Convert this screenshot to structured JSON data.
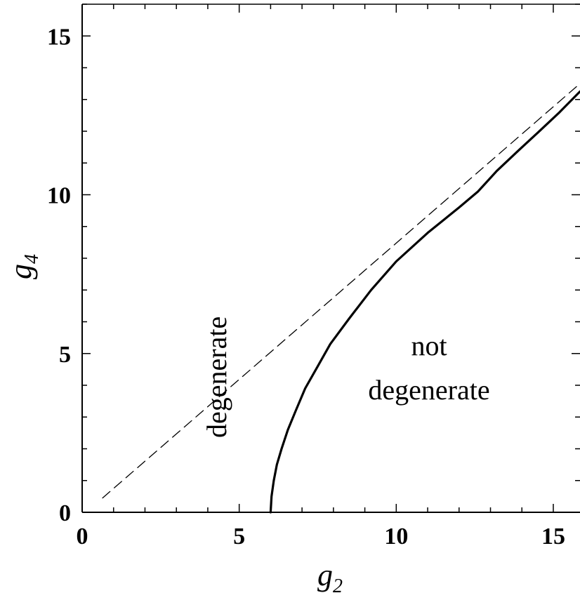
{
  "chart_data": {
    "type": "line",
    "xlabel": "g",
    "xlabel_sub": "2",
    "ylabel": "g",
    "ylabel_sub": "4",
    "xlim": [
      0,
      15.85
    ],
    "ylim": [
      0,
      16
    ],
    "x_ticks": [
      0,
      5,
      10,
      15
    ],
    "y_ticks": [
      0,
      5,
      10,
      15
    ],
    "grid": false,
    "series": [
      {
        "style": "solid",
        "color": "#000000",
        "x": [
          6.0,
          6.03,
          6.1,
          6.2,
          6.35,
          6.55,
          6.8,
          7.1,
          7.5,
          7.9,
          8.5,
          9.2,
          10.0,
          11.0,
          12.0,
          12.6,
          13.2,
          13.9,
          14.5,
          15.2,
          15.85
        ],
        "y": [
          0.0,
          0.5,
          1.0,
          1.5,
          2.0,
          2.6,
          3.2,
          3.9,
          4.6,
          5.3,
          6.1,
          7.0,
          7.9,
          8.8,
          9.6,
          10.1,
          10.75,
          11.4,
          11.95,
          12.6,
          13.25
        ]
      },
      {
        "style": "dashed",
        "color": "#000000",
        "x": [
          0.65,
          15.85
        ],
        "y": [
          0.45,
          13.5
        ]
      }
    ],
    "annotations": {
      "left_region": "degenerate",
      "right_region_line1": "not",
      "right_region_line2": "degenerate"
    }
  }
}
